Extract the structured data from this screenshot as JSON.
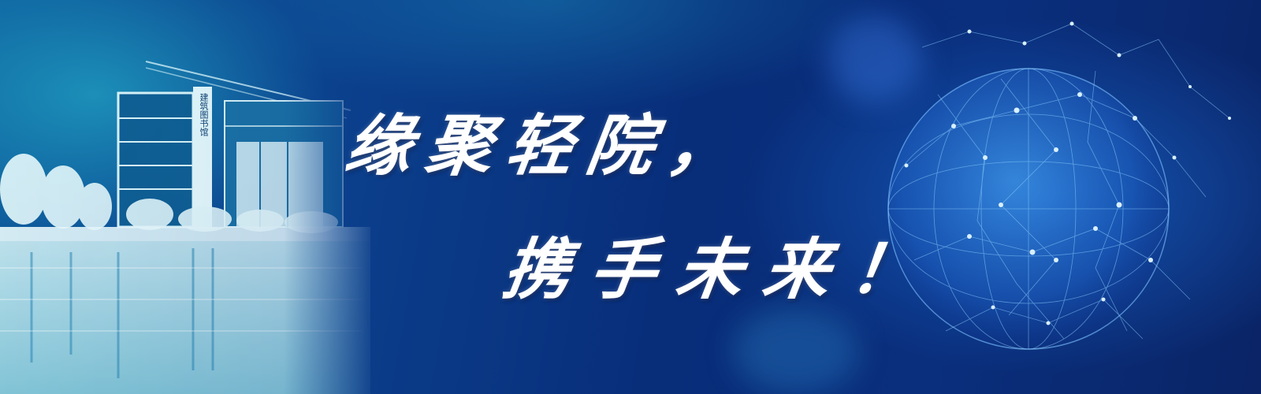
{
  "headline": {
    "line1": "缘聚轻院，",
    "line2": "携手未来！"
  },
  "building_sign": "建筑图书馆",
  "colors": {
    "background_dark": "#082d79",
    "background_light": "#0e5f9e",
    "glow_cyan": "#28bed2",
    "text": "#ffffff",
    "network_line": "#7fc3ff"
  },
  "decorations": [
    "campus-building-scene",
    "network-globe"
  ]
}
